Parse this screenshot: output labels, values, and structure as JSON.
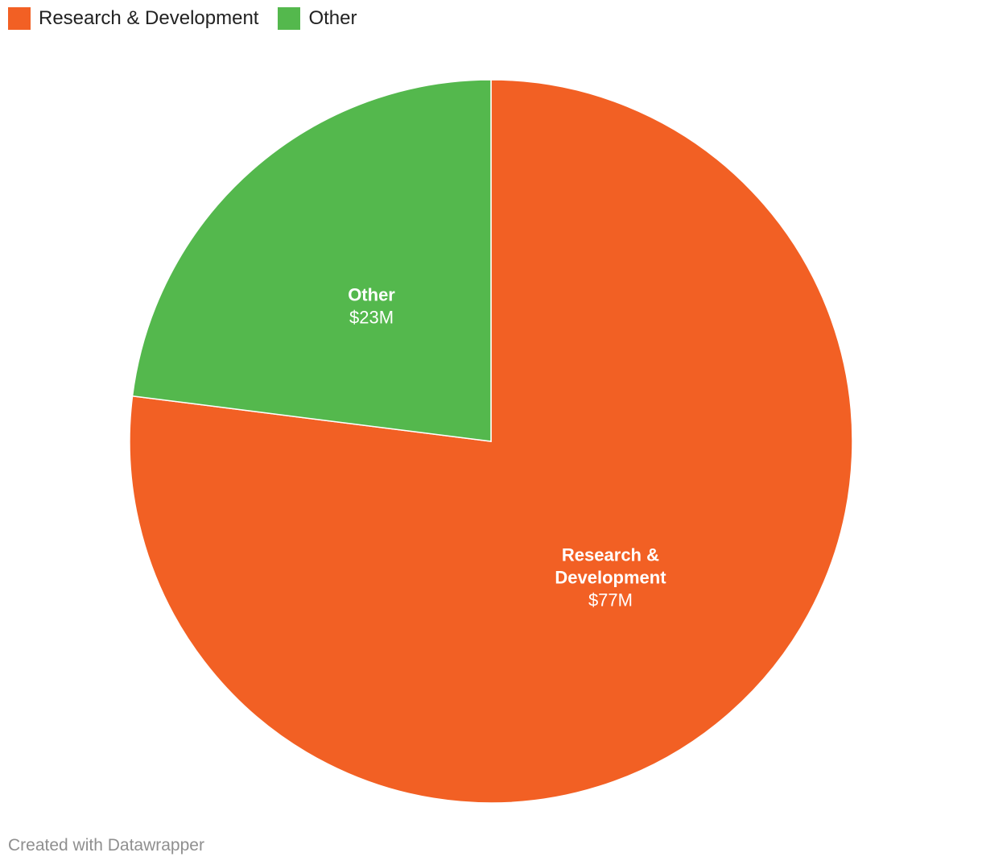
{
  "chart_data": {
    "type": "pie",
    "slices": [
      {
        "name": "Research & Development",
        "label_lines": [
          "Research &",
          "Development"
        ],
        "value": 77,
        "value_label": "$77M",
        "color": "#f26024"
      },
      {
        "name": "Other",
        "label_lines": [
          "Other"
        ],
        "value": 23,
        "value_label": "$23M",
        "color": "#54b84d"
      }
    ],
    "legend": {
      "position": "top-left",
      "items": [
        {
          "label": "Research & Development",
          "color": "#f26024"
        },
        {
          "label": "Other",
          "color": "#54b84d"
        }
      ]
    }
  },
  "footer": {
    "credit": "Created with Datawrapper"
  }
}
